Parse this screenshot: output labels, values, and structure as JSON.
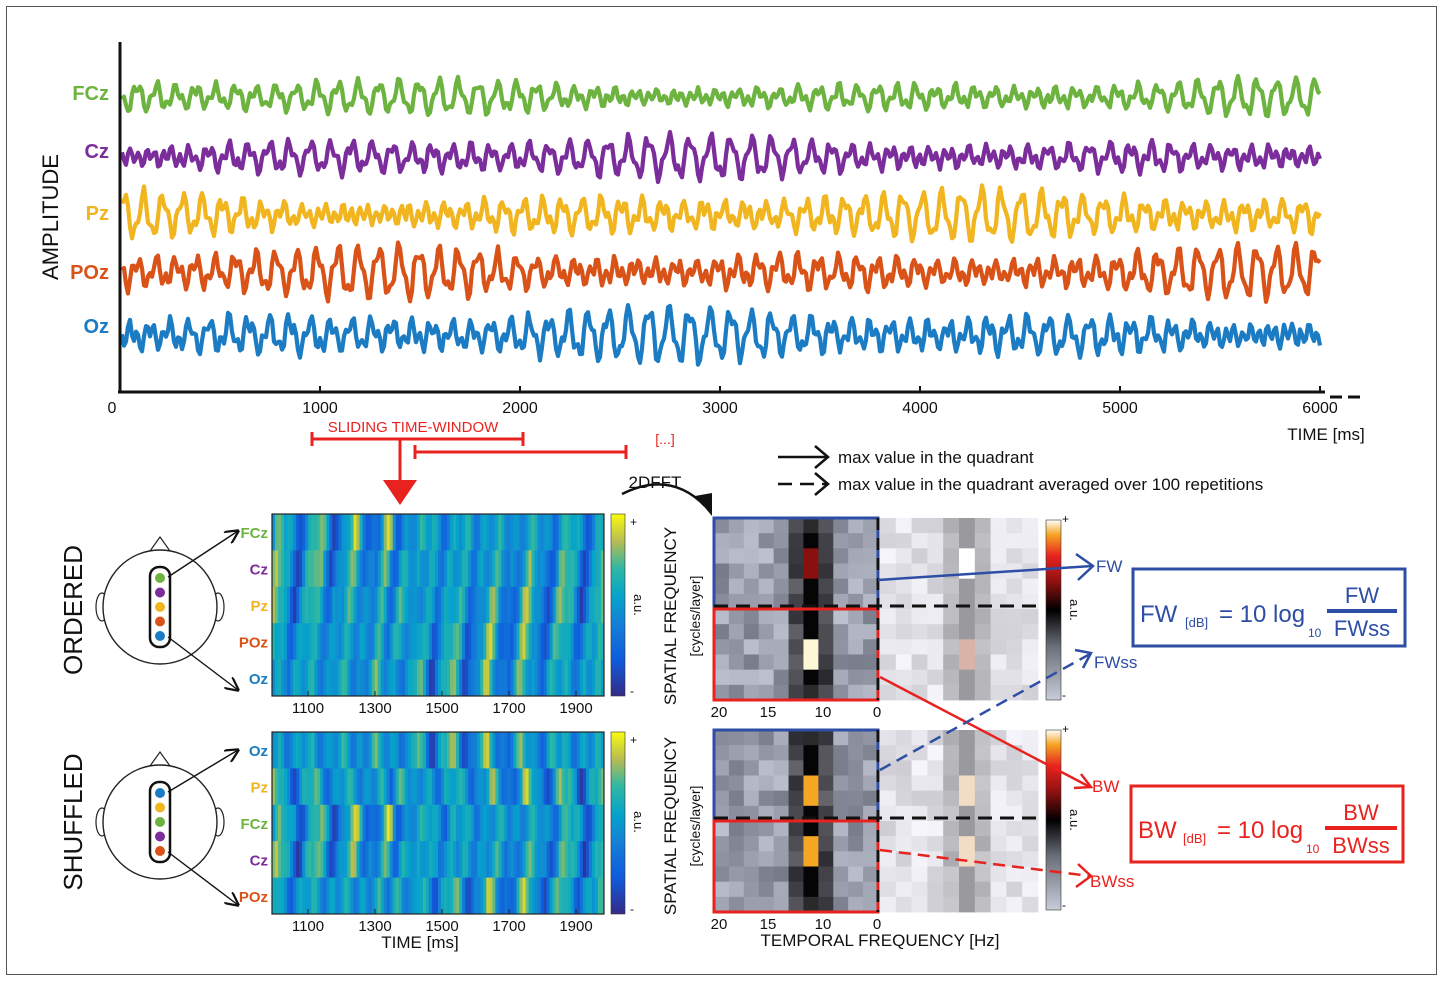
{
  "colors": {
    "FCz": "#6db33f",
    "Cz": "#7b2d9b",
    "Pz": "#f0b51f",
    "POz": "#d95319",
    "Oz": "#1b7cc4",
    "red": "#e8231f",
    "blue": "#2e4ea6",
    "axis": "#111111"
  },
  "timeseries": {
    "ylabel": "AMPLITUDE",
    "xlabel": "TIME [ms]",
    "xticks": [
      "0",
      "1000",
      "2000",
      "3000",
      "4000",
      "5000",
      "6000"
    ],
    "channels": [
      "FCz",
      "Cz",
      "Pz",
      "POz",
      "Oz"
    ]
  },
  "sliding": {
    "label": "SLIDING TIME-WINDOW",
    "ellipsis": "[...]"
  },
  "ordered": {
    "label": "ORDERED",
    "channels": [
      "FCz",
      "Cz",
      "Pz",
      "POz",
      "Oz"
    ],
    "xticks": [
      "1100",
      "1300",
      "1500",
      "1700",
      "1900"
    ],
    "colorbar_plus": "+",
    "colorbar_minus": "-",
    "colorbar_label": "a.u."
  },
  "shuffled": {
    "label": "SHUFFLED",
    "channels": [
      "Oz",
      "Pz",
      "FCz",
      "Cz",
      "POz"
    ],
    "xticks": [
      "1100",
      "1300",
      "1500",
      "1700",
      "1900"
    ],
    "xlabel": "TIME [ms]",
    "colorbar_plus": "+",
    "colorbar_minus": "-",
    "colorbar_label": "a.u."
  },
  "fft": {
    "label": "2DFFT",
    "ylabel1": "SPATIAL FREQUENCY",
    "ylabel2": "[cycles/layer]",
    "xticks": [
      "20",
      "15",
      "10",
      "0"
    ],
    "xlabel": "TEMPORAL FREQUENCY [Hz]",
    "colorbar_plus": "+",
    "colorbar_minus": "-",
    "colorbar_label": "a.u."
  },
  "legend": {
    "solid": "max value in the quadrant",
    "dashed": "max value in the quadrant averaged over 100 repetitions"
  },
  "outputs": {
    "fw": "FW",
    "fwss": "FWss",
    "bw": "BW",
    "bwss": "BWss"
  },
  "formulas": {
    "fw": {
      "lhs": "FW",
      "sub": "[dB]",
      "eq": "= 10 log",
      "base": "10",
      "num": "FW",
      "den": "FWss"
    },
    "bw": {
      "lhs": "BW",
      "sub": "[dB]",
      "eq": "= 10 log",
      "base": "10",
      "num": "BW",
      "den": "BWss"
    }
  }
}
